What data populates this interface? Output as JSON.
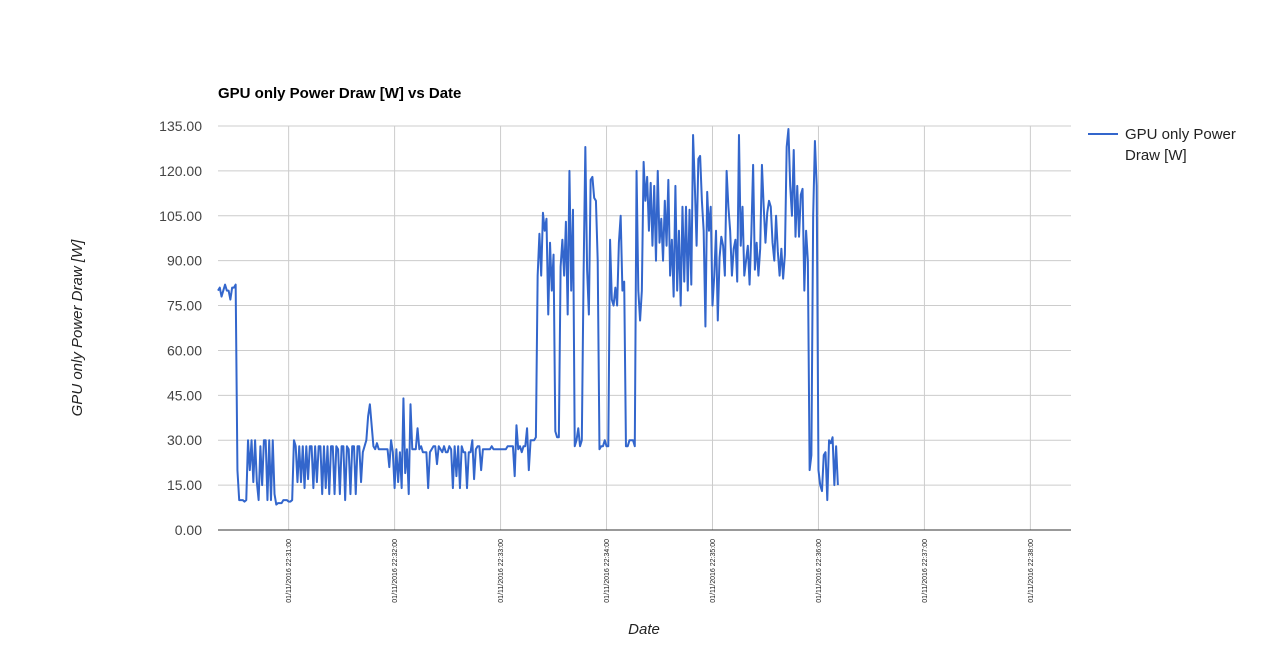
{
  "chart_data": {
    "type": "line",
    "title": "GPU only Power Draw [W] vs Date",
    "xlabel": "Date",
    "ylabel": "GPU only Power Draw [W]",
    "ylim": [
      0,
      135
    ],
    "yticks": [
      "0.00",
      "15.00",
      "30.00",
      "45.00",
      "60.00",
      "75.00",
      "90.00",
      "105.00",
      "120.00",
      "135.00"
    ],
    "xlim": [
      "01/11/2016 22:30:20",
      "01/11/2016 22:38:23"
    ],
    "xticks": [
      "01/11/2016 22:31:00",
      "01/11/2016 22:32:00",
      "01/11/2016 22:33:00",
      "01/11/2016 22:34:00",
      "01/11/2016 22:35:00",
      "01/11/2016 22:36:00",
      "01/11/2016 22:37:00",
      "01/11/2016 22:38:00"
    ],
    "grid": true,
    "legend_position": "right",
    "series": [
      {
        "name": "GPU only Power Draw [W]",
        "color": "#3366cc",
        "start": "01/11/2016 22:30:20",
        "interval_seconds": 1,
        "values": [
          80,
          81,
          78,
          80,
          82,
          80,
          80,
          77,
          81,
          81,
          82,
          20,
          10,
          10,
          10,
          9.5,
          10,
          30,
          20,
          30,
          16,
          30,
          16,
          10,
          28,
          15,
          30,
          30,
          10,
          30,
          10,
          30,
          12,
          8.5,
          9,
          9,
          9,
          10,
          10,
          10,
          9.5,
          9.5,
          10,
          30,
          28,
          16,
          28,
          16,
          28,
          14,
          28,
          17,
          28,
          28,
          14,
          28,
          16,
          28,
          28,
          12,
          28,
          14,
          28,
          12,
          28,
          28,
          12,
          28,
          27,
          12,
          28,
          28,
          10,
          28,
          27,
          12,
          28,
          28,
          12,
          28,
          28,
          16,
          26,
          28,
          30,
          38,
          42,
          35,
          28,
          27,
          29,
          27,
          27,
          27,
          27,
          27,
          27,
          21,
          30,
          26,
          14,
          27,
          16,
          26,
          14,
          44,
          19,
          27,
          12,
          42,
          27,
          27,
          27,
          34,
          27,
          28,
          26,
          26,
          26,
          14,
          26,
          27,
          28,
          28,
          22,
          28,
          27,
          26,
          28,
          26,
          26,
          28,
          27,
          14,
          28,
          18,
          28,
          14,
          28,
          26,
          26,
          14,
          26,
          26,
          30,
          17,
          27,
          28,
          28,
          20,
          27,
          27,
          27,
          27,
          27,
          28,
          27,
          27,
          27,
          27,
          27,
          27,
          27,
          27,
          28,
          28,
          28,
          28,
          18,
          35,
          27,
          28,
          26,
          28,
          28,
          34,
          20,
          30,
          30,
          30,
          31,
          85,
          99,
          85,
          106,
          100,
          104,
          72,
          96,
          80,
          92,
          33,
          31,
          31,
          88,
          97,
          85,
          103,
          72,
          120,
          80,
          107,
          28,
          30,
          34,
          28,
          30,
          85,
          128,
          87,
          72,
          117,
          118,
          111,
          110,
          90,
          27,
          28,
          28,
          30,
          28,
          28,
          97,
          77,
          75,
          81,
          75,
          96,
          105,
          80,
          83,
          28,
          28,
          30,
          30,
          30,
          28,
          120,
          80,
          70,
          80,
          123,
          110,
          118,
          100,
          116,
          95,
          115,
          90,
          120,
          96,
          104,
          90,
          110,
          95,
          117,
          85,
          97,
          78,
          115,
          80,
          100,
          75,
          108,
          83,
          108,
          80,
          107,
          82,
          132,
          115,
          95,
          124,
          125,
          110,
          100,
          68,
          113,
          100,
          108,
          75,
          85,
          100,
          70,
          91,
          98,
          95,
          85,
          120,
          108,
          100,
          85,
          94,
          97,
          83,
          132,
          95,
          108,
          85,
          90,
          95,
          82,
          99,
          122,
          87,
          96,
          85,
          94,
          122,
          108,
          96,
          106,
          110,
          108,
          96,
          90,
          105,
          93,
          85,
          94,
          84,
          92,
          128,
          134,
          115,
          105,
          127,
          98,
          115,
          98,
          112,
          114,
          80,
          100,
          90,
          20,
          25,
          105,
          130,
          115,
          20,
          15,
          13,
          25,
          26,
          10,
          30,
          29,
          31,
          15,
          28,
          15
        ]
      }
    ]
  }
}
